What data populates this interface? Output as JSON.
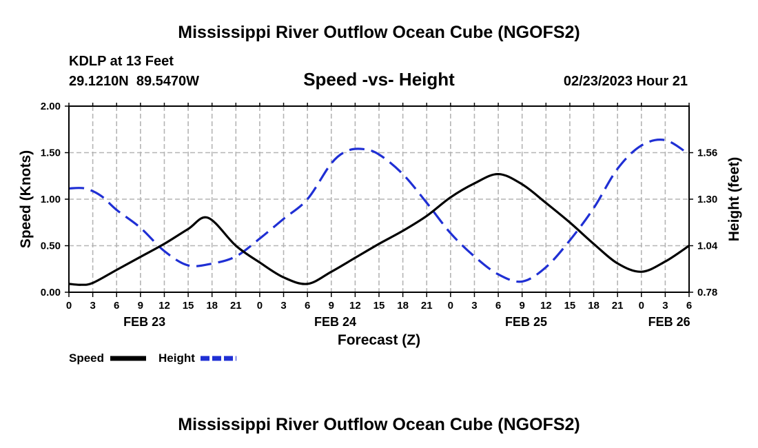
{
  "page_title": "Mississippi River Outflow Ocean Cube (NGOFS2)",
  "footer_title": "Mississippi River Outflow Ocean Cube (NGOFS2)",
  "station": {
    "name": "KDLP at 13 Feet",
    "coords": "29.1210N  89.5470W"
  },
  "forecast_time": "02/23/2023 Hour 21",
  "chart_data": {
    "type": "line",
    "title": "Speed -vs- Height",
    "xlabel": "Forecast (Z)",
    "ylabel": "Speed (Knots)",
    "y2label": "Height (feet)",
    "xlim": [
      0,
      78
    ],
    "ylim": [
      0,
      2.0
    ],
    "y2lim": [
      0.78,
      1.82
    ],
    "x_ticks": [
      0,
      3,
      6,
      9,
      12,
      15,
      18,
      21,
      24,
      27,
      30,
      33,
      36,
      39,
      42,
      45,
      48,
      51,
      54,
      57,
      60,
      63,
      66,
      69,
      72,
      75,
      78
    ],
    "x_tick_labels": [
      "0",
      "3",
      "6",
      "9",
      "12",
      "15",
      "18",
      "21",
      "0",
      "3",
      "6",
      "9",
      "12",
      "15",
      "18",
      "21",
      "0",
      "3",
      "6",
      "9",
      "12",
      "15",
      "18",
      "21",
      "0",
      "3",
      "6"
    ],
    "y_ticks": [
      0,
      0.5,
      1.0,
      1.5,
      2.0
    ],
    "y_tick_labels": [
      "0.00",
      "0.50",
      "1.00",
      "1.50",
      "2.00"
    ],
    "y2_ticks": [
      0.78,
      1.04,
      1.3,
      1.56
    ],
    "y2_tick_labels": [
      "0.78",
      "1.04",
      "1.30",
      "1.56"
    ],
    "date_labels": [
      {
        "x": 9.5,
        "label": "FEB 23"
      },
      {
        "x": 33.5,
        "label": "FEB 24"
      },
      {
        "x": 57.5,
        "label": "FEB 25"
      },
      {
        "x": 75.5,
        "label": "FEB 26"
      }
    ],
    "grid": true,
    "legend_position": "bottom-left",
    "series": [
      {
        "name": "Speed",
        "axis": "left",
        "color": "#000000",
        "dash": "solid",
        "x": [
          0,
          1.5,
          3,
          6,
          9,
          12,
          15,
          17.5,
          21,
          24,
          27,
          30,
          33,
          36,
          39,
          42,
          45,
          48,
          51,
          54,
          57,
          60,
          63,
          66,
          69,
          72,
          75,
          78
        ],
        "values": [
          0.09,
          0.08,
          0.1,
          0.24,
          0.38,
          0.52,
          0.68,
          0.8,
          0.5,
          0.32,
          0.16,
          0.09,
          0.22,
          0.37,
          0.52,
          0.66,
          0.82,
          1.02,
          1.17,
          1.27,
          1.16,
          0.96,
          0.75,
          0.52,
          0.31,
          0.22,
          0.33,
          0.5
        ]
      },
      {
        "name": "Height",
        "axis": "right",
        "color": "#1f2fd4",
        "dash": "dashed",
        "x": [
          0,
          2,
          4,
          6,
          9,
          12,
          15,
          18,
          21,
          24,
          27,
          30,
          33,
          35,
          37,
          39,
          42,
          45,
          48,
          51,
          54,
          57,
          60,
          63,
          66,
          69,
          72,
          75,
          78
        ],
        "values": [
          1.36,
          1.36,
          1.32,
          1.24,
          1.14,
          1.01,
          0.93,
          0.94,
          0.98,
          1.08,
          1.19,
          1.3,
          1.5,
          1.57,
          1.58,
          1.55,
          1.44,
          1.28,
          1.11,
          0.98,
          0.88,
          0.84,
          0.92,
          1.07,
          1.25,
          1.47,
          1.6,
          1.63,
          1.55
        ]
      }
    ]
  }
}
